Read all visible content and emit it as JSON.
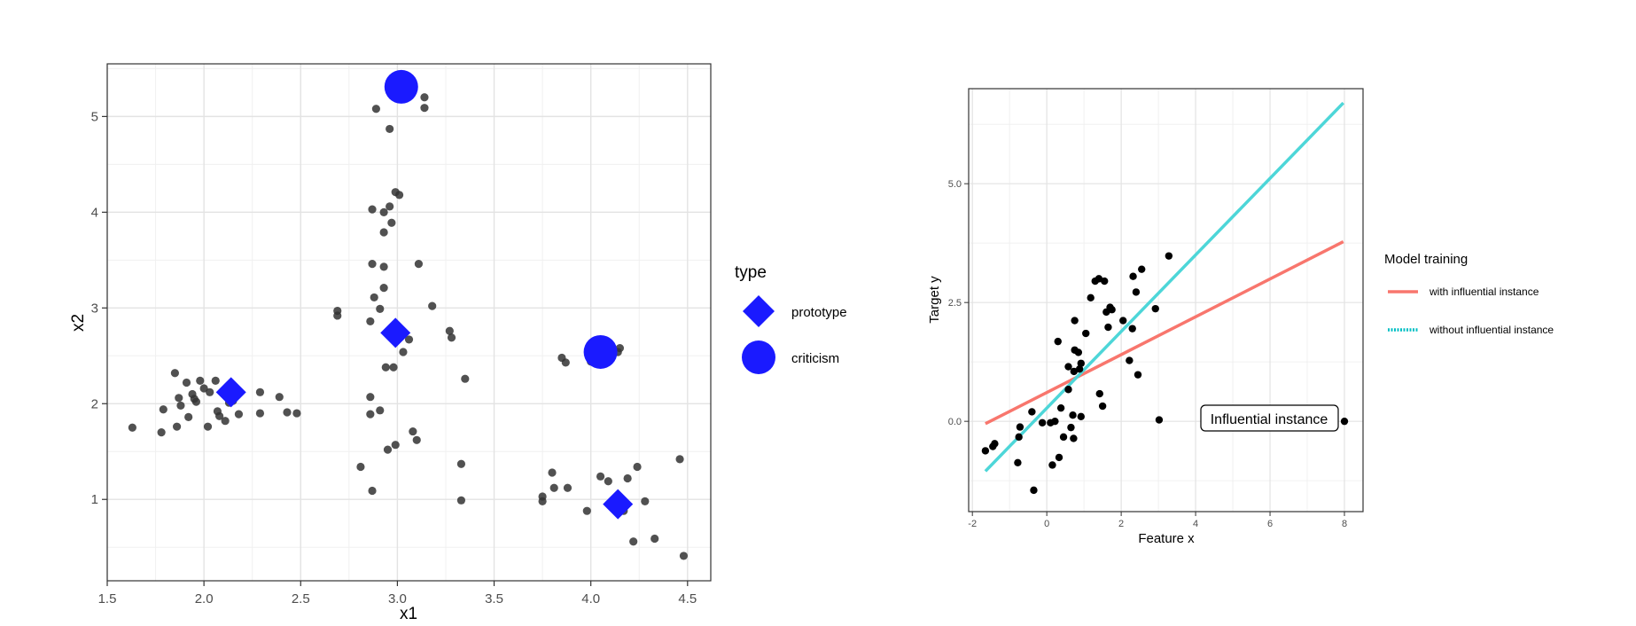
{
  "chart_data": [
    {
      "type": "scatter",
      "xlabel": "x1",
      "ylabel": "x2",
      "xlim": [
        1.5,
        4.62
      ],
      "ylim": [
        0.15,
        5.55
      ],
      "x_ticks": [
        1.5,
        2.0,
        2.5,
        3.0,
        3.5,
        4.0,
        4.5
      ],
      "x_tick_labels": [
        "1.5",
        "2.0",
        "2.5",
        "3.0",
        "3.5",
        "4.0",
        "4.5"
      ],
      "y_ticks": [
        1,
        2,
        3,
        4,
        5
      ],
      "y_tick_labels": [
        "1",
        "2",
        "3",
        "4",
        "5"
      ],
      "grid": true,
      "legend": {
        "title": "type",
        "position": "right",
        "entries": [
          {
            "label": "prototype",
            "shape": "diamond"
          },
          {
            "label": "criticism",
            "shape": "circle"
          }
        ]
      },
      "colors": {
        "points": "#333333",
        "highlight": "#1a1aff"
      },
      "series": [
        {
          "kind": "points",
          "points": [
            [
              1.63,
              1.75
            ],
            [
              1.78,
              1.7
            ],
            [
              1.79,
              1.94
            ],
            [
              1.85,
              2.32
            ],
            [
              1.86,
              1.76
            ],
            [
              1.87,
              2.06
            ],
            [
              1.88,
              1.98
            ],
            [
              1.91,
              2.22
            ],
            [
              1.92,
              1.86
            ],
            [
              1.94,
              2.1
            ],
            [
              1.95,
              2.05
            ],
            [
              1.96,
              2.02
            ],
            [
              1.98,
              2.24
            ],
            [
              2.0,
              2.16
            ],
            [
              2.02,
              1.76
            ],
            [
              2.03,
              2.12
            ],
            [
              2.06,
              2.24
            ],
            [
              2.07,
              1.92
            ],
            [
              2.08,
              1.87
            ],
            [
              2.11,
              1.82
            ],
            [
              2.13,
              2.01
            ],
            [
              2.15,
              2.03
            ],
            [
              2.18,
              1.89
            ],
            [
              2.29,
              2.12
            ],
            [
              2.29,
              1.9
            ],
            [
              2.39,
              2.07
            ],
            [
              2.43,
              1.91
            ],
            [
              2.48,
              1.9
            ],
            [
              2.69,
              2.97
            ],
            [
              2.69,
              2.92
            ],
            [
              2.81,
              1.34
            ],
            [
              2.86,
              2.07
            ],
            [
              2.86,
              1.89
            ],
            [
              2.86,
              2.86
            ],
            [
              2.87,
              1.09
            ],
            [
              2.87,
              3.46
            ],
            [
              2.87,
              4.03
            ],
            [
              2.88,
              3.11
            ],
            [
              2.89,
              5.08
            ],
            [
              2.91,
              2.99
            ],
            [
              2.91,
              1.93
            ],
            [
              2.93,
              3.43
            ],
            [
              2.93,
              3.21
            ],
            [
              2.93,
              4.0
            ],
            [
              2.93,
              3.79
            ],
            [
              2.94,
              2.38
            ],
            [
              2.95,
              1.52
            ],
            [
              2.96,
              4.06
            ],
            [
              2.96,
              4.87
            ],
            [
              2.97,
              3.89
            ],
            [
              2.98,
              2.38
            ],
            [
              2.99,
              4.21
            ],
            [
              2.99,
              1.57
            ],
            [
              3.01,
              4.18
            ],
            [
              3.03,
              2.54
            ],
            [
              3.06,
              2.67
            ],
            [
              3.08,
              1.71
            ],
            [
              3.1,
              1.62
            ],
            [
              3.11,
              3.46
            ],
            [
              3.14,
              5.2
            ],
            [
              3.14,
              5.09
            ],
            [
              3.18,
              3.02
            ],
            [
              3.27,
              2.76
            ],
            [
              3.28,
              2.69
            ],
            [
              3.33,
              1.37
            ],
            [
              3.33,
              0.99
            ],
            [
              3.35,
              2.26
            ],
            [
              3.75,
              1.03
            ],
            [
              3.75,
              0.98
            ],
            [
              3.8,
              1.28
            ],
            [
              3.81,
              1.12
            ],
            [
              3.85,
              2.48
            ],
            [
              3.87,
              2.43
            ],
            [
              3.88,
              1.12
            ],
            [
              3.98,
              0.88
            ],
            [
              4.0,
              2.44
            ],
            [
              4.05,
              1.24
            ],
            [
              4.09,
              1.19
            ],
            [
              4.14,
              2.54
            ],
            [
              4.15,
              2.58
            ],
            [
              4.17,
              0.88
            ],
            [
              4.19,
              1.22
            ],
            [
              4.22,
              0.56
            ],
            [
              4.24,
              1.34
            ],
            [
              4.28,
              0.98
            ],
            [
              4.33,
              0.59
            ],
            [
              4.46,
              1.42
            ],
            [
              4.48,
              0.41
            ]
          ]
        },
        {
          "kind": "prototype",
          "points": [
            [
              2.14,
              2.12
            ],
            [
              2.99,
              2.74
            ],
            [
              4.14,
              0.95
            ]
          ]
        },
        {
          "kind": "criticism",
          "points": [
            [
              3.02,
              5.31
            ],
            [
              4.05,
              2.54
            ]
          ]
        }
      ]
    },
    {
      "type": "scatter",
      "xlabel": "Feature x",
      "ylabel": "Target y",
      "xlim": [
        -2.1,
        8.5
      ],
      "ylim": [
        -1.9,
        7.0
      ],
      "x_ticks": [
        -2,
        0,
        2,
        4,
        6,
        8
      ],
      "x_tick_labels": [
        "-2",
        "0",
        "2",
        "4",
        "6",
        "8"
      ],
      "y_ticks": [
        0,
        2.5,
        5
      ],
      "y_tick_labels": [
        "0.0",
        "2.5",
        "5.0"
      ],
      "grid": true,
      "annotation": {
        "text": "Influential instance",
        "x": 6.1,
        "y": 0.1
      },
      "legend": {
        "title": "Model training",
        "position": "right",
        "entries": [
          {
            "label": "with influential instance",
            "color": "#f8766d",
            "linestyle": "solid"
          },
          {
            "label": "without influential instance",
            "color": "#00bfc4",
            "linestyle": "dotted"
          }
        ]
      },
      "colors": {
        "points": "#000000",
        "with": "#f8766d",
        "without": "#4dd6d8"
      },
      "lines": [
        {
          "name": "with influential instance",
          "x": [
            -1.65,
            7.97
          ],
          "y": [
            -0.05,
            3.78
          ]
        },
        {
          "name": "without influential instance",
          "x": [
            -1.65,
            7.97
          ],
          "y": [
            -1.05,
            6.7
          ]
        }
      ],
      "points": [
        [
          -1.65,
          -0.62
        ],
        [
          -1.45,
          -0.53
        ],
        [
          -1.4,
          -0.47
        ],
        [
          -0.78,
          -0.87
        ],
        [
          -0.75,
          -0.33
        ],
        [
          -0.72,
          -0.12
        ],
        [
          -0.35,
          -1.45
        ],
        [
          -0.4,
          0.2
        ],
        [
          -0.12,
          -0.03
        ],
        [
          0.1,
          -0.03
        ],
        [
          0.15,
          -0.92
        ],
        [
          0.22,
          0.0
        ],
        [
          0.3,
          1.68
        ],
        [
          0.33,
          -0.76
        ],
        [
          0.38,
          0.28
        ],
        [
          0.45,
          -0.33
        ],
        [
          0.58,
          1.15
        ],
        [
          0.58,
          0.67
        ],
        [
          0.65,
          -0.13
        ],
        [
          0.7,
          0.13
        ],
        [
          0.72,
          -0.36
        ],
        [
          0.73,
          1.05
        ],
        [
          0.75,
          2.12
        ],
        [
          0.75,
          1.5
        ],
        [
          0.85,
          1.45
        ],
        [
          0.88,
          1.1
        ],
        [
          0.92,
          1.22
        ],
        [
          0.92,
          0.1
        ],
        [
          1.05,
          1.85
        ],
        [
          1.18,
          2.6
        ],
        [
          1.3,
          2.95
        ],
        [
          1.4,
          3.0
        ],
        [
          1.42,
          0.58
        ],
        [
          1.5,
          0.32
        ],
        [
          1.55,
          2.95
        ],
        [
          1.6,
          2.3
        ],
        [
          1.65,
          1.98
        ],
        [
          1.7,
          2.4
        ],
        [
          1.75,
          2.35
        ],
        [
          2.05,
          2.12
        ],
        [
          2.22,
          1.28
        ],
        [
          2.3,
          1.95
        ],
        [
          2.32,
          3.05
        ],
        [
          2.4,
          2.72
        ],
        [
          2.45,
          0.98
        ],
        [
          2.55,
          3.2
        ],
        [
          2.92,
          2.37
        ],
        [
          3.02,
          0.03
        ],
        [
          3.28,
          3.48
        ],
        [
          8.0,
          0.0
        ]
      ]
    }
  ]
}
